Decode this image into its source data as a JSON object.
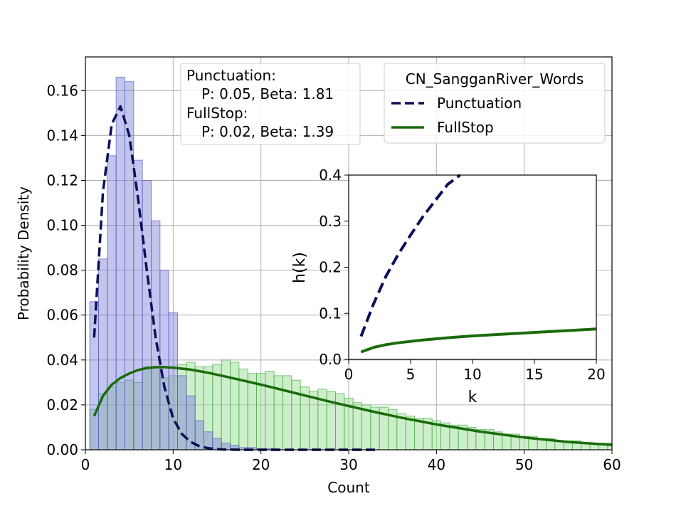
{
  "chart_data": [
    {
      "type": "histogram+line",
      "xlabel": "Count",
      "ylabel": "Probability Density",
      "xlim": [
        0,
        60
      ],
      "ylim": [
        0,
        0.175
      ],
      "xticks": [
        0,
        10,
        20,
        30,
        40,
        50,
        60
      ],
      "yticks": [
        0.0,
        0.02,
        0.04,
        0.06,
        0.08,
        0.1,
        0.12,
        0.14,
        0.16
      ],
      "grid": true,
      "legend": {
        "title": "CN_SangganRiver_Words",
        "position": "top-right",
        "entries": [
          {
            "label": "Punctuation",
            "color": "#0b1057",
            "style": "dashed"
          },
          {
            "label": "FullStop",
            "color": "#1a6b0a",
            "style": "solid"
          }
        ]
      },
      "stats_box": [
        "Punctuation:",
        "P: 0.05, Beta: 1.81",
        "FullStop:",
        "P: 0.02, Beta: 1.39"
      ],
      "histograms": [
        {
          "name": "Punctuation",
          "color": "#7b7fd6",
          "edge_color": "#5a60c8",
          "bins_start": 0.5,
          "bin_width": 1,
          "densities": [
            0.066,
            0.085,
            0.131,
            0.166,
            0.164,
            0.129,
            0.12,
            0.102,
            0.08,
            0.061,
            0.033,
            0.024,
            0.013,
            0.008,
            0.005,
            0.003,
            0.002,
            0.001,
            0.001,
            0.0005,
            0.0005
          ]
        },
        {
          "name": "FullStop",
          "color": "#8fd98a",
          "edge_color": "#4bb046",
          "bins_start": 0.5,
          "bin_width": 1,
          "densities": [
            0.018,
            0.025,
            0.028,
            0.03,
            0.031,
            0.03,
            0.037,
            0.037,
            0.032,
            0.033,
            0.038,
            0.039,
            0.037,
            0.037,
            0.038,
            0.04,
            0.039,
            0.036,
            0.034,
            0.034,
            0.035,
            0.033,
            0.033,
            0.031,
            0.028,
            0.026,
            0.027,
            0.026,
            0.025,
            0.023,
            0.021,
            0.02,
            0.019,
            0.019,
            0.018,
            0.016,
            0.015,
            0.014,
            0.014,
            0.013,
            0.012,
            0.011,
            0.011,
            0.01,
            0.009,
            0.009,
            0.008,
            0.007,
            0.007,
            0.006,
            0.006,
            0.005,
            0.005,
            0.004,
            0.004,
            0.004,
            0.003,
            0.003,
            0.003,
            0.003
          ]
        }
      ],
      "series": [
        {
          "name": "Punctuation",
          "style": "dashed",
          "color": "#0b1057",
          "x": [
            1,
            2,
            3,
            4,
            5,
            6,
            7,
            8,
            9,
            10,
            11,
            12,
            13,
            14,
            15,
            16,
            18,
            20,
            25,
            33
          ],
          "y": [
            0.05,
            0.115,
            0.145,
            0.153,
            0.14,
            0.112,
            0.08,
            0.05,
            0.028,
            0.014,
            0.007,
            0.0035,
            0.0016,
            0.0007,
            0.0003,
            0.0001,
            0.0,
            0.0,
            0.0,
            0.0
          ]
        },
        {
          "name": "FullStop",
          "style": "solid",
          "color": "#1a6b0a",
          "x": [
            1,
            2,
            3,
            4,
            5,
            6,
            7,
            8,
            9,
            10,
            12,
            14,
            16,
            18,
            20,
            22,
            25,
            28,
            30,
            33,
            36,
            40,
            45,
            50,
            55,
            60
          ],
          "y": [
            0.015,
            0.024,
            0.029,
            0.032,
            0.034,
            0.0355,
            0.0364,
            0.0368,
            0.0368,
            0.0366,
            0.0357,
            0.0343,
            0.0326,
            0.0308,
            0.029,
            0.0271,
            0.0242,
            0.0213,
            0.0195,
            0.0168,
            0.0143,
            0.0113,
            0.0081,
            0.0055,
            0.0035,
            0.0022
          ]
        }
      ]
    },
    {
      "type": "line",
      "role": "inset",
      "xlabel": "k",
      "ylabel": "h(k)",
      "xlim": [
        0,
        20
      ],
      "ylim": [
        0,
        0.4
      ],
      "xticks": [
        0,
        5,
        10,
        15,
        20
      ],
      "yticks": [
        0.0,
        0.1,
        0.2,
        0.3,
        0.4
      ],
      "grid": false,
      "series": [
        {
          "name": "Punctuation",
          "style": "dashed",
          "color": "#0b1057",
          "x": [
            1,
            2,
            3,
            4,
            5,
            6,
            7,
            8,
            9
          ],
          "y": [
            0.05,
            0.12,
            0.18,
            0.228,
            0.27,
            0.31,
            0.345,
            0.38,
            0.405
          ]
        },
        {
          "name": "FullStop",
          "style": "solid",
          "color": "#1a6b0a",
          "x": [
            1,
            2,
            3,
            4,
            5,
            6,
            8,
            10,
            12,
            14,
            16,
            18,
            20
          ],
          "y": [
            0.016,
            0.026,
            0.032,
            0.036,
            0.039,
            0.042,
            0.047,
            0.051,
            0.054,
            0.057,
            0.06,
            0.063,
            0.066
          ]
        }
      ]
    }
  ]
}
